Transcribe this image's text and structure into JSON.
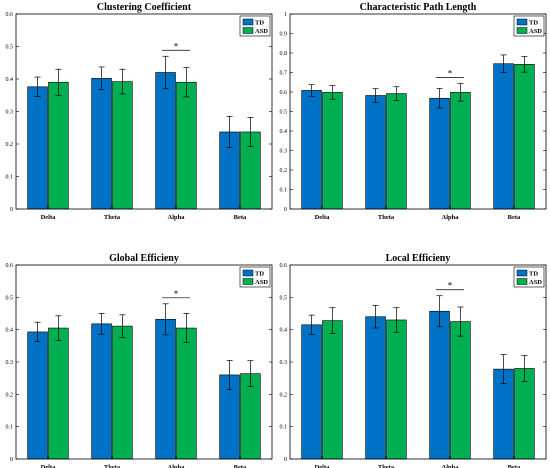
{
  "colors": {
    "TD": "#0072c6",
    "ASD": "#00b050"
  },
  "legend": [
    "TD",
    "ASD"
  ],
  "chart_data": [
    {
      "type": "bar",
      "title": "Clustering Coefficient",
      "categories": [
        "Delta",
        "Theta",
        "Alpha",
        "Beta"
      ],
      "series": [
        {
          "name": "TD",
          "values": [
            0.376,
            0.402,
            0.42,
            0.237
          ],
          "errors": [
            0.03,
            0.035,
            0.05,
            0.048
          ]
        },
        {
          "name": "ASD",
          "values": [
            0.39,
            0.392,
            0.39,
            0.237
          ],
          "errors": [
            0.04,
            0.038,
            0.045,
            0.045
          ]
        }
      ],
      "ylim": [
        0,
        0.6
      ],
      "yticks": [
        "0",
        "0.1",
        "0.2",
        "0.3",
        "0.4",
        "0.5",
        "0.6"
      ],
      "significance": {
        "category": "Alpha",
        "label": "*"
      },
      "legend_position": "top-right"
    },
    {
      "type": "bar",
      "title": "Characteristic Path Length",
      "categories": [
        "Delta",
        "Theta",
        "Alpha",
        "Beta"
      ],
      "series": [
        {
          "name": "TD",
          "values": [
            0.608,
            0.582,
            0.568,
            0.745
          ],
          "errors": [
            0.03,
            0.035,
            0.05,
            0.045
          ]
        },
        {
          "name": "ASD",
          "values": [
            0.598,
            0.592,
            0.598,
            0.742
          ],
          "errors": [
            0.035,
            0.035,
            0.045,
            0.04
          ]
        }
      ],
      "ylim": [
        0,
        1
      ],
      "yticks": [
        "0",
        "0.1",
        "0.2",
        "0.3",
        "0.4",
        "0.5",
        "0.6",
        "0.7",
        "0.8",
        "0.9",
        "1"
      ],
      "significance": {
        "category": "Alpha",
        "label": "*"
      },
      "legend_position": "top-right"
    },
    {
      "type": "bar",
      "title": "Global Efficieny",
      "categories": [
        "Delta",
        "Theta",
        "Alpha",
        "Beta"
      ],
      "series": [
        {
          "name": "TD",
          "values": [
            0.393,
            0.418,
            0.432,
            0.26
          ],
          "errors": [
            0.03,
            0.032,
            0.048,
            0.045
          ]
        },
        {
          "name": "ASD",
          "values": [
            0.405,
            0.411,
            0.405,
            0.264
          ],
          "errors": [
            0.038,
            0.035,
            0.045,
            0.04
          ]
        }
      ],
      "ylim": [
        0,
        0.6
      ],
      "yticks": [
        "0",
        "0.1",
        "0.2",
        "0.3",
        "0.4",
        "0.5",
        "0.6"
      ],
      "significance": {
        "category": "Alpha",
        "label": "*"
      },
      "legend_position": "top-right"
    },
    {
      "type": "bar",
      "title": "Local Efficieny",
      "categories": [
        "Delta",
        "Theta",
        "Alpha",
        "Beta"
      ],
      "series": [
        {
          "name": "TD",
          "values": [
            0.415,
            0.44,
            0.457,
            0.278
          ],
          "errors": [
            0.03,
            0.035,
            0.048,
            0.045
          ]
        },
        {
          "name": "ASD",
          "values": [
            0.428,
            0.43,
            0.425,
            0.28
          ],
          "errors": [
            0.04,
            0.038,
            0.045,
            0.04
          ]
        }
      ],
      "ylim": [
        0,
        0.6
      ],
      "yticks": [
        "0",
        "0.1",
        "0.2",
        "0.3",
        "0.4",
        "0.5",
        "0.6"
      ],
      "significance": {
        "category": "Alpha",
        "label": "*"
      },
      "legend_position": "top-right"
    }
  ]
}
